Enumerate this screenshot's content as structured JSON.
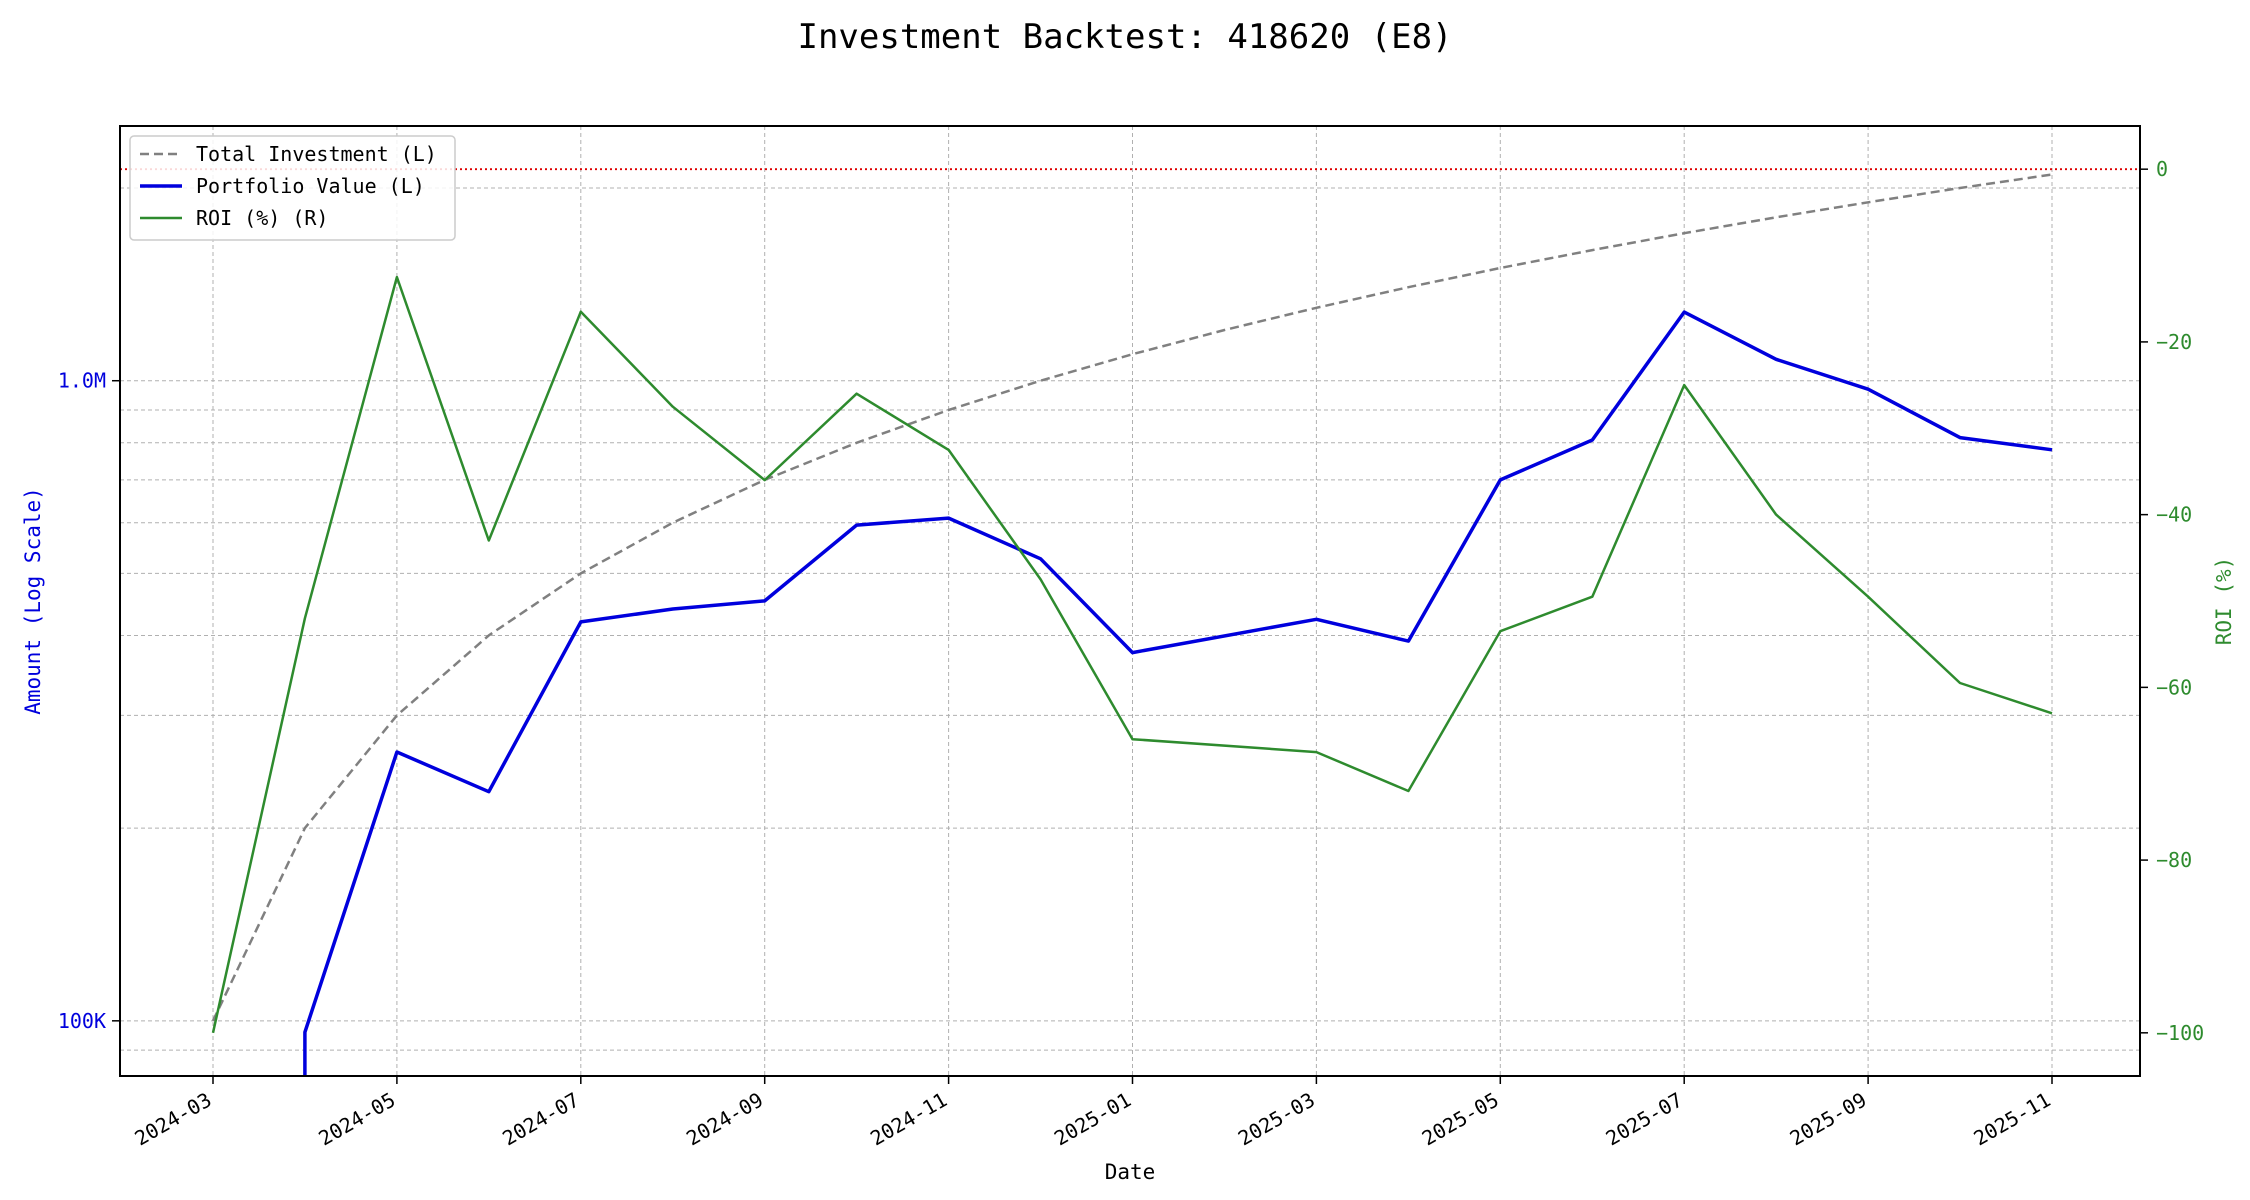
{
  "chart_data": {
    "type": "line",
    "title": "Investment Backtest: 418620 (E8)",
    "xlabel": "Date",
    "ylabel_left": "Amount (Log Scale)",
    "ylabel_right": "ROI (%)",
    "left_axis_scale": "log",
    "left_ylim": [
      82000,
      2500000
    ],
    "right_ylim": [
      -105,
      5
    ],
    "grid": true,
    "legend_position": "top-left",
    "x_ticks": [
      "2024-03",
      "2024-05",
      "2024-07",
      "2024-09",
      "2024-11",
      "2025-01",
      "2025-03",
      "2025-05",
      "2025-07",
      "2025-09",
      "2025-11"
    ],
    "left_ticks": [
      {
        "value": 100000,
        "label": "100K"
      },
      {
        "value": 1000000,
        "label": "1.0M"
      }
    ],
    "right_ticks": [
      0,
      -20,
      -40,
      -60,
      -80,
      -100
    ],
    "reference_line": {
      "axis": "right",
      "value": 0,
      "color": "#dd0000"
    },
    "x": [
      "2024-03",
      "2024-04",
      "2024-05",
      "2024-06",
      "2024-07",
      "2024-08",
      "2024-09",
      "2024-10",
      "2024-11",
      "2024-12",
      "2025-01",
      "2025-02",
      "2025-03",
      "2025-04",
      "2025-05",
      "2025-06",
      "2025-07",
      "2025-08",
      "2025-09",
      "2025-10",
      "2025-11"
    ],
    "series": [
      {
        "name": "Total Investment (L)",
        "axis": "left",
        "color": "#808080",
        "style": "dashed",
        "values": [
          100000,
          200000,
          300000,
          400000,
          500000,
          600000,
          700000,
          800000,
          900000,
          1000000,
          1100000,
          1200000,
          1300000,
          1400000,
          1500000,
          1600000,
          1700000,
          1800000,
          1900000,
          2000000,
          2100000
        ]
      },
      {
        "name": "Portfolio Value (L)",
        "axis": "left",
        "color": "#0000dd",
        "style": "solid",
        "values": [
          null,
          96000,
          263000,
          228000,
          420000,
          440000,
          453000,
          595000,
          610000,
          527000,
          376000,
          null,
          424000,
          392000,
          700000,
          808000,
          1280000,
          1080000,
          970000,
          815000,
          780000
        ]
      },
      {
        "name": "ROI (%) (R)",
        "axis": "right",
        "color": "#2e8b2e",
        "style": "solid",
        "values": [
          -100,
          -52,
          -12.5,
          -43,
          -16.5,
          -27.5,
          -36,
          -26,
          -32.5,
          -47.5,
          -66,
          null,
          -67.5,
          -72,
          -53.5,
          -49.5,
          -25,
          -40,
          -49.5,
          -59.5,
          -63
        ]
      }
    ]
  }
}
